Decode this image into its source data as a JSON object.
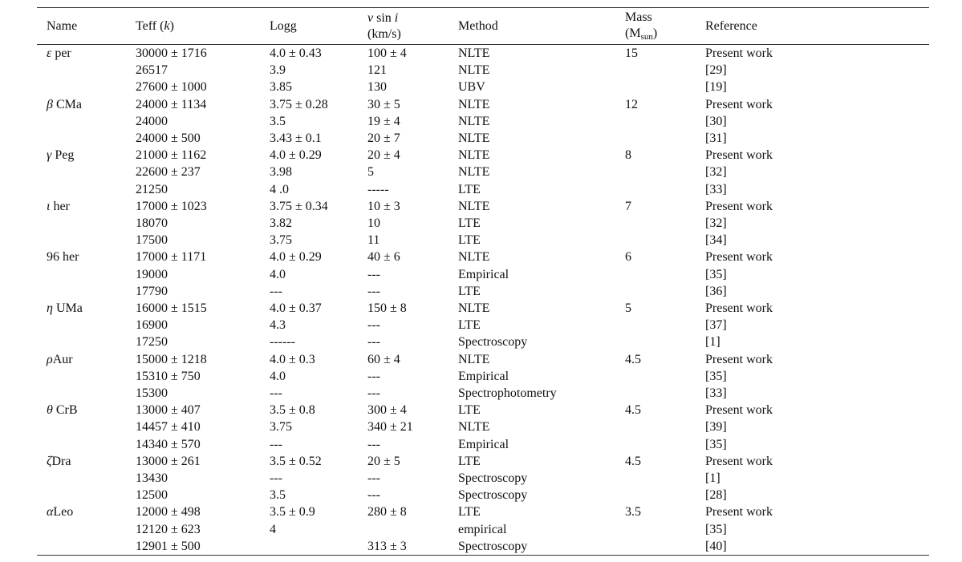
{
  "table": {
    "headers": {
      "name": "Name",
      "teff_label": "Teff",
      "teff_unit": "k",
      "logg": "Logg",
      "vsini_v": "v",
      "vsini_sin": "sin",
      "vsini_i": "i",
      "vsini_unit": "(km/s)",
      "method": "Method",
      "mass_label": "Mass",
      "mass_unit_open": "(M",
      "mass_unit_sub": "sun",
      "mass_unit_close": ")",
      "reference": "Reference"
    },
    "groups": [
      {
        "star_greek": "ε",
        "star_name": " per",
        "mass": "15",
        "rows": [
          {
            "teff": "30000 ± 1716",
            "logg": "4.0 ± 0.43",
            "vsini": "100 ± 4",
            "method": "NLTE",
            "ref": "Present work"
          },
          {
            "teff": "26517",
            "logg": "3.9",
            "vsini": "121",
            "method": "NLTE",
            "ref": "[29]"
          },
          {
            "teff": "27600 ± 1000",
            "logg": "3.85",
            "vsini": "130",
            "method": "UBV",
            "ref": "[19]"
          }
        ]
      },
      {
        "star_greek": "β",
        "star_name": " CMa",
        "mass": "12",
        "rows": [
          {
            "teff": "24000 ± 1134",
            "logg": "3.75 ± 0.28",
            "vsini": "30 ± 5",
            "method": "NLTE",
            "ref": "Present work"
          },
          {
            "teff": "24000",
            "logg": "3.5",
            "vsini": "19 ± 4",
            "method": "NLTE",
            "ref": "[30]"
          },
          {
            "teff": "24000 ± 500",
            "logg": "3.43 ± 0.1",
            "vsini": "20 ± 7",
            "method": "NLTE",
            "ref": "[31]"
          }
        ]
      },
      {
        "star_greek": "γ",
        "star_name": " Peg",
        "mass": "8",
        "rows": [
          {
            "teff": "21000 ± 1162",
            "logg": "4.0 ± 0.29",
            "vsini": "20 ± 4",
            "method": "NLTE",
            "ref": "Present work"
          },
          {
            "teff": "22600 ± 237",
            "logg": "3.98",
            "vsini": "5",
            "method": "NLTE",
            "ref": "[32]"
          },
          {
            "teff": "21250",
            "logg": "4 .0",
            "vsini": "-----",
            "method": "LTE",
            "ref": "[33]"
          }
        ]
      },
      {
        "star_greek": "ι",
        "star_name": " her",
        "mass": "7",
        "rows": [
          {
            "teff": "17000 ± 1023",
            "logg": "3.75 ± 0.34",
            "vsini": "10 ± 3",
            "method": "NLTE",
            "ref": "Present work"
          },
          {
            "teff": "18070",
            "logg": "3.82",
            "vsini": "10",
            "method": "LTE",
            "ref": "[32]"
          },
          {
            "teff": "17500",
            "logg": "3.75",
            "vsini": "11",
            "method": "LTE",
            "ref": "[34]"
          }
        ]
      },
      {
        "star_greek": "",
        "star_name": "96 her",
        "mass": "6",
        "rows": [
          {
            "teff": "17000 ± 1171",
            "logg": "4.0 ± 0.29",
            "vsini": "40 ± 6",
            "method": "NLTE",
            "ref": "Present work"
          },
          {
            "teff": "19000",
            "logg": "4.0",
            "vsini": "---",
            "method": "Empirical",
            "ref": "[35]"
          },
          {
            "teff": "17790",
            "logg": "---",
            "vsini": "---",
            "method": "LTE",
            "ref": "[36]"
          }
        ]
      },
      {
        "star_greek": "η",
        "star_name": " UMa",
        "mass": "5",
        "rows": [
          {
            "teff": "16000 ± 1515",
            "logg": "4.0 ± 0.37",
            "vsini": "150 ± 8",
            "method": "NLTE",
            "ref": "Present work"
          },
          {
            "teff": "16900",
            "logg": "4.3",
            "vsini": "---",
            "method": "LTE",
            "ref": "[37]"
          },
          {
            "teff": "17250",
            "logg": "------",
            "vsini": "---",
            "method": "Spectroscopy",
            "ref": "[1]"
          }
        ]
      },
      {
        "star_greek": "ρ",
        "star_name": "Aur",
        "mass": "4.5",
        "rows": [
          {
            "teff": "15000 ± 1218",
            "logg": "4.0 ± 0.3",
            "vsini": "60 ± 4",
            "method": "NLTE",
            "ref": "Present work"
          },
          {
            "teff": "15310 ± 750",
            "logg": "4.0",
            "vsini": "---",
            "method": "Empirical",
            "ref": "[35]"
          },
          {
            "teff": "15300",
            "logg": "---",
            "vsini": "---",
            "method": "Spectrophotometry",
            "ref": "[33]"
          }
        ]
      },
      {
        "star_greek": "θ",
        "star_name": " CrB",
        "mass": "4.5",
        "rows": [
          {
            "teff": "13000 ± 407",
            "logg": "3.5 ± 0.8",
            "vsini": "300 ± 4",
            "method": "LTE",
            "ref": "Present work"
          },
          {
            "teff": "14457 ± 410",
            "logg": "3.75",
            "vsini": "340 ± 21",
            "method": "NLTE",
            "ref": "[39]"
          },
          {
            "teff": "14340 ± 570",
            "logg": "---",
            "vsini": "---",
            "method": "Empirical",
            "ref": "[35]"
          }
        ]
      },
      {
        "star_greek": "ζ",
        "star_name": "Dra",
        "mass": "4.5",
        "rows": [
          {
            "teff": "13000 ± 261",
            "logg": "3.5 ± 0.52",
            "vsini": "20 ± 5",
            "method": "LTE",
            "ref": "Present work"
          },
          {
            "teff": "13430",
            "logg": "---",
            "vsini": "---",
            "method": "Spectroscopy",
            "ref": "[1]"
          },
          {
            "teff": "12500",
            "logg": "3.5",
            "vsini": "---",
            "method": "Spectroscopy",
            "ref": "[28]"
          }
        ]
      },
      {
        "star_greek": "α",
        "star_name": "Leo",
        "mass": "3.5",
        "rows": [
          {
            "teff": "12000 ± 498",
            "logg": "3.5 ± 0.9",
            "vsini": "280 ± 8",
            "method": "LTE",
            "ref": "Present work"
          },
          {
            "teff": "12120 ± 623",
            "logg": "4",
            "vsini": "",
            "method": "empirical",
            "ref": "[35]"
          },
          {
            "teff": "12901 ± 500",
            "logg": "",
            "vsini": "313 ± 3",
            "method": "Spectroscopy",
            "ref": "[40]"
          }
        ]
      }
    ]
  }
}
